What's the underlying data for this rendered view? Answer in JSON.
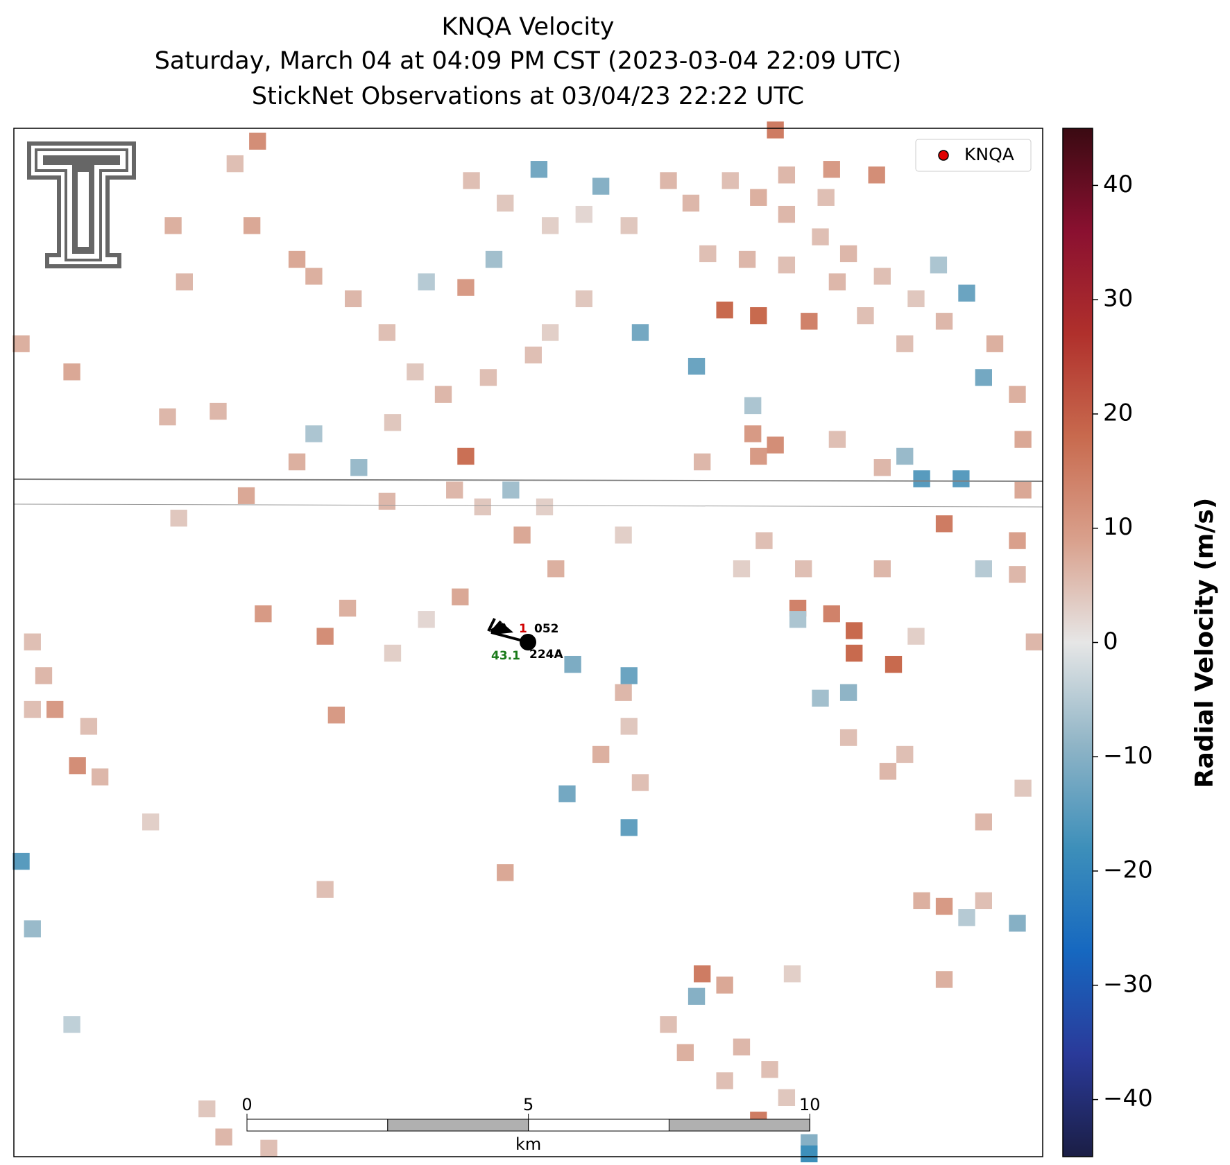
{
  "chart_data": {
    "type": "radar",
    "title": [
      "KNQA Velocity",
      "Saturday, March 04 at 04:09 PM CST (2023-03-04 22:09 UTC)",
      "StickNet Observations at 03/04/23 22:22 UTC"
    ],
    "xlim": [
      -9.13,
      9.15
    ],
    "ylim": [
      -9.15,
      9.13
    ],
    "clim": [
      -45,
      45
    ],
    "colormap": [
      "#1b1e45",
      "#2a3a9a",
      "#1668c0",
      "#3d8fba",
      "#8fb4c6",
      "#e6e6e6",
      "#d9a08c",
      "#c86a4e",
      "#b0302c",
      "#8a1030",
      "#3a0a12"
    ],
    "colorbar_label": "Radial Velocity (m/s)",
    "cticks": [
      {
        "value": -40,
        "label": "−40"
      },
      {
        "value": -30,
        "label": "−30"
      },
      {
        "value": -20,
        "label": "−20"
      },
      {
        "value": -10,
        "label": "−10"
      },
      0,
      10,
      20,
      30,
      40
    ],
    "legend": {
      "entries": [
        "KNQA"
      ],
      "corner": "upper right",
      "color": "#e00000"
    },
    "scalebar": {
      "ticks": [
        0,
        5,
        10
      ],
      "label": "km"
    },
    "station": {
      "id": "052",
      "label": "224A",
      "upper_value": 1,
      "lower_value": 43.1
    },
    "cells": [
      [
        -4.8,
        8.9,
        12
      ],
      [
        4.4,
        9.1,
        15
      ],
      [
        -1.1,
        6.3,
        10
      ],
      [
        -1.1,
        3.3,
        17
      ],
      [
        3.5,
        5.9,
        18
      ],
      [
        4.1,
        5.8,
        18
      ],
      [
        5.0,
        5.7,
        14
      ],
      [
        6.2,
        8.3,
        12
      ],
      [
        5.4,
        8.4,
        10
      ],
      [
        2.0,
        5.5,
        -12
      ],
      [
        3.0,
        4.9,
        -13
      ],
      [
        4.0,
        4.2,
        -6
      ],
      [
        4.0,
        3.7,
        10
      ],
      [
        4.1,
        3.3,
        10
      ],
      [
        4.4,
        3.5,
        12
      ],
      [
        7.0,
        2.9,
        -15
      ],
      [
        7.7,
        2.9,
        -15
      ],
      [
        7.4,
        2.1,
        15
      ],
      [
        5.8,
        0.2,
        18
      ],
      [
        5.8,
        -0.2,
        18
      ],
      [
        5.4,
        0.5,
        14
      ],
      [
        4.8,
        0.6,
        14
      ],
      [
        6.5,
        -0.4,
        18
      ],
      [
        4.8,
        0.4,
        -6
      ],
      [
        5.2,
        -1.0,
        -7
      ],
      [
        5.7,
        -0.9,
        -9
      ],
      [
        1.8,
        -0.6,
        -13
      ],
      [
        0.8,
        -0.4,
        -11
      ],
      [
        0.7,
        -2.7,
        -12
      ],
      [
        1.8,
        -3.3,
        -14
      ],
      [
        -0.4,
        -4.1,
        8
      ],
      [
        -3.6,
        0.1,
        12
      ],
      [
        -4.7,
        0.5,
        10
      ],
      [
        -8.4,
        -1.2,
        10
      ],
      [
        -8.0,
        -2.2,
        12
      ],
      [
        -9.0,
        -3.9,
        -15
      ],
      [
        -8.8,
        -5.1,
        -8
      ],
      [
        3.1,
        -5.9,
        15
      ],
      [
        3.0,
        -6.3,
        -10
      ],
      [
        2.5,
        -6.8,
        5
      ],
      [
        3.5,
        -6.1,
        8
      ],
      [
        4.1,
        -8.5,
        15
      ],
      [
        5.0,
        -8.9,
        -10
      ],
      [
        5.0,
        -9.1,
        -18
      ],
      [
        8.7,
        -5.0,
        -10
      ],
      [
        7.4,
        -4.7,
        10
      ],
      [
        7.8,
        -4.9,
        -5
      ],
      [
        7.8,
        6.2,
        -13
      ],
      [
        8.1,
        4.7,
        -12
      ],
      [
        6.7,
        3.3,
        -8
      ],
      [
        7.3,
        6.7,
        -6
      ],
      [
        0.2,
        8.4,
        -12
      ],
      [
        1.3,
        8.1,
        -10
      ],
      [
        -0.6,
        6.8,
        -7
      ],
      [
        -1.8,
        6.4,
        -5
      ],
      [
        -0.3,
        2.7,
        -7
      ],
      [
        -3.0,
        3.1,
        -8
      ],
      [
        -3.8,
        3.7,
        -6
      ],
      [
        -1.0,
        8.2,
        5
      ],
      [
        -0.4,
        7.8,
        4
      ],
      [
        0.4,
        7.4,
        3
      ],
      [
        1.0,
        7.6,
        2
      ],
      [
        1.8,
        7.4,
        4
      ],
      [
        2.5,
        8.2,
        6
      ],
      [
        2.9,
        7.8,
        6
      ],
      [
        3.6,
        8.2,
        5
      ],
      [
        4.1,
        7.9,
        7
      ],
      [
        4.6,
        7.6,
        6
      ],
      [
        5.2,
        7.2,
        5
      ],
      [
        5.7,
        6.9,
        6
      ],
      [
        6.3,
        6.5,
        5
      ],
      [
        6.9,
        6.1,
        4
      ],
      [
        7.4,
        5.7,
        6
      ],
      [
        8.3,
        5.3,
        7
      ],
      [
        8.7,
        4.4,
        7
      ],
      [
        8.8,
        3.6,
        8
      ],
      [
        8.8,
        2.7,
        8
      ],
      [
        8.7,
        1.8,
        9
      ],
      [
        8.7,
        1.2,
        6
      ],
      [
        4.6,
        8.3,
        6
      ],
      [
        5.3,
        7.9,
        5
      ],
      [
        3.2,
        6.9,
        5
      ],
      [
        3.9,
        6.8,
        6
      ],
      [
        4.6,
        6.7,
        5
      ],
      [
        5.5,
        6.4,
        6
      ],
      [
        6.0,
        5.8,
        5
      ],
      [
        6.7,
        5.3,
        5
      ],
      [
        0.4,
        5.5,
        3
      ],
      [
        1.0,
        6.1,
        4
      ],
      [
        0.1,
        5.1,
        5
      ],
      [
        -0.7,
        4.7,
        5
      ],
      [
        -1.5,
        4.4,
        6
      ],
      [
        -2.0,
        4.8,
        4
      ],
      [
        -2.5,
        5.5,
        5
      ],
      [
        -3.1,
        6.1,
        6
      ],
      [
        -3.8,
        6.5,
        7
      ],
      [
        -4.1,
        6.8,
        8
      ],
      [
        -4.9,
        7.4,
        8
      ],
      [
        -5.2,
        8.5,
        5
      ],
      [
        -6.3,
        7.4,
        7
      ],
      [
        -6.1,
        6.4,
        6
      ],
      [
        -9.0,
        5.3,
        7
      ],
      [
        -8.1,
        4.8,
        8
      ],
      [
        -6.4,
        4.0,
        6
      ],
      [
        -5.5,
        4.1,
        6
      ],
      [
        -4.1,
        3.2,
        7
      ],
      [
        -2.4,
        3.9,
        4
      ],
      [
        -1.3,
        2.7,
        6
      ],
      [
        -0.8,
        2.4,
        4
      ],
      [
        0.3,
        2.4,
        3
      ],
      [
        -0.1,
        1.9,
        8
      ],
      [
        0.5,
        1.3,
        7
      ],
      [
        1.7,
        1.9,
        3
      ],
      [
        3.8,
        1.3,
        3
      ],
      [
        4.2,
        1.8,
        5
      ],
      [
        4.9,
        1.3,
        5
      ],
      [
        6.3,
        1.3,
        6
      ],
      [
        6.3,
        3.1,
        6
      ],
      [
        5.5,
        3.6,
        5
      ],
      [
        3.1,
        3.2,
        6
      ],
      [
        -6.2,
        2.2,
        4
      ],
      [
        -5.0,
        2.6,
        8
      ],
      [
        -2.5,
        2.5,
        6
      ],
      [
        -1.2,
        0.8,
        8
      ],
      [
        -3.2,
        0.6,
        7
      ],
      [
        -1.8,
        0.4,
        2
      ],
      [
        -2.4,
        -0.2,
        3
      ],
      [
        -8.8,
        0.0,
        5
      ],
      [
        -8.6,
        -0.6,
        6
      ],
      [
        -8.8,
        -1.2,
        5
      ],
      [
        -7.8,
        -1.5,
        5
      ],
      [
        -7.6,
        -2.4,
        6
      ],
      [
        -6.7,
        -3.2,
        3
      ],
      [
        -3.6,
        -4.4,
        5
      ],
      [
        -3.4,
        -1.3,
        10
      ],
      [
        1.3,
        -2.0,
        7
      ],
      [
        1.7,
        -0.9,
        6
      ],
      [
        1.8,
        -1.5,
        4
      ],
      [
        2.0,
        -2.5,
        5
      ],
      [
        4.7,
        -5.9,
        3
      ],
      [
        7.4,
        -6.0,
        7
      ],
      [
        8.1,
        -3.2,
        6
      ],
      [
        8.8,
        -2.6,
        4
      ],
      [
        6.4,
        -2.3,
        6
      ],
      [
        6.7,
        -2.0,
        5
      ],
      [
        5.7,
        -1.7,
        5
      ],
      [
        3.8,
        -7.2,
        6
      ],
      [
        3.5,
        -7.8,
        5
      ],
      [
        4.3,
        -7.6,
        5
      ],
      [
        4.6,
        -8.1,
        4
      ],
      [
        2.8,
        -7.3,
        7
      ],
      [
        -5.7,
        -8.3,
        4
      ],
      [
        -5.4,
        -8.8,
        6
      ],
      [
        -4.6,
        -9.0,
        5
      ],
      [
        -8.1,
        -6.8,
        -4
      ],
      [
        7.0,
        -4.6,
        7
      ],
      [
        8.1,
        -4.6,
        5
      ],
      [
        6.9,
        0.1,
        3
      ],
      [
        9.0,
        0.0,
        6
      ],
      [
        8.1,
        1.3,
        -5
      ]
    ]
  }
}
